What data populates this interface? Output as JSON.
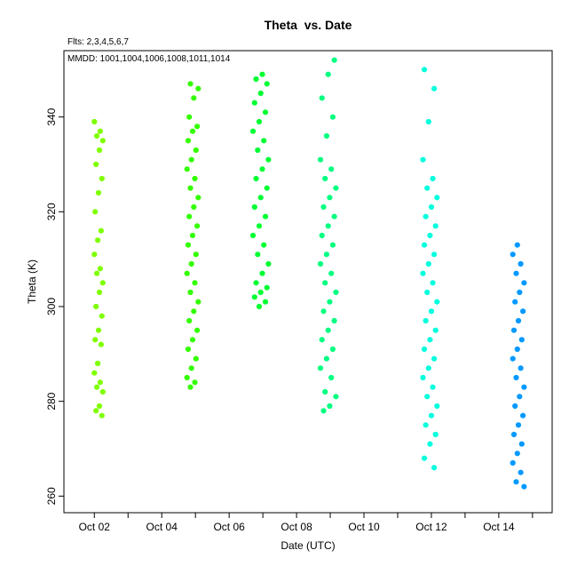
{
  "chart_data": {
    "type": "scatter",
    "title": "Theta  vs. Date",
    "subtitle": "Flts: 2,3,4,5,6,7",
    "annotation": "MMDD: 1001,1004,1006,1008,1011,1014",
    "xlabel": "Date (UTC)",
    "ylabel": "Theta (K)",
    "xlim": [
      "2023-10-01T02:20",
      "2023-10-15T14:00"
    ],
    "ylim": [
      256.5,
      354.0
    ],
    "x_ticks": [
      {
        "date": "2023-10-02",
        "label": "Oct 02"
      },
      {
        "date": "2023-10-04",
        "label": "Oct 04"
      },
      {
        "date": "2023-10-06",
        "label": "Oct 06"
      },
      {
        "date": "2023-10-08",
        "label": "Oct 08"
      },
      {
        "date": "2023-10-10",
        "label": "Oct 10"
      },
      {
        "date": "2023-10-12",
        "label": "Oct 12"
      },
      {
        "date": "2023-10-14",
        "label": "Oct 14"
      }
    ],
    "x_minor_ticks": [
      "2023-10-03",
      "2023-10-05",
      "2023-10-07",
      "2023-10-09",
      "2023-10-11",
      "2023-10-13",
      "2023-10-15"
    ],
    "y_ticks": [
      260,
      280,
      300,
      320,
      340
    ],
    "grid": false,
    "series": [
      {
        "color": "#7fff00",
        "dates": [
          "2023-10-02T00:00",
          "2023-10-02T06:00"
        ],
        "values": [
          339,
          337,
          336,
          335,
          333,
          330,
          327,
          324,
          320,
          316,
          314,
          311,
          308,
          307,
          305,
          303,
          300,
          298,
          295,
          293,
          292,
          288,
          286,
          284,
          283,
          282,
          279,
          278,
          277
        ]
      },
      {
        "color": "#33ff00",
        "dates": [
          "2023-10-04T18:00",
          "2023-10-05T02:00"
        ],
        "values": [
          347,
          346,
          344,
          340,
          338,
          337,
          335,
          333,
          331,
          329,
          327,
          325,
          323,
          321,
          319,
          317,
          315,
          313,
          311,
          309,
          307,
          305,
          303,
          301,
          299,
          297,
          295,
          293,
          291,
          289,
          287,
          285,
          284,
          283
        ]
      },
      {
        "color": "#00ff33",
        "dates": [
          "2023-10-06T17:00",
          "2023-10-07T04:00"
        ],
        "values": [
          349,
          348,
          347,
          345,
          343,
          341,
          339,
          337,
          335,
          333,
          331,
          329,
          327,
          325,
          323,
          321,
          319,
          317,
          315,
          313,
          311,
          309,
          307,
          305,
          304,
          303,
          302,
          301,
          300
        ]
      },
      {
        "color": "#00ff80",
        "dates": [
          "2023-10-08T17:00",
          "2023-10-09T04:00"
        ],
        "values": [
          352,
          349,
          344,
          340,
          336,
          331,
          329,
          327,
          325,
          323,
          321,
          319,
          317,
          315,
          313,
          311,
          309,
          307,
          305,
          303,
          301,
          299,
          297,
          295,
          293,
          291,
          289,
          287,
          285,
          282,
          281,
          279,
          278
        ]
      },
      {
        "color": "#00ffdd",
        "dates": [
          "2023-10-11T18:00",
          "2023-10-12T04:00"
        ],
        "values": [
          350,
          346,
          339,
          331,
          327,
          325,
          323,
          321,
          319,
          317,
          315,
          313,
          311,
          309,
          307,
          305,
          303,
          301,
          299,
          297,
          295,
          293,
          291,
          289,
          287,
          285,
          283,
          281,
          279,
          277,
          275,
          273,
          271,
          268,
          266
        ]
      },
      {
        "color": "#0099ff",
        "dates": [
          "2023-10-14T10:00",
          "2023-10-14T18:00"
        ],
        "values": [
          313,
          311,
          309,
          307,
          305,
          303,
          301,
          299,
          297,
          295,
          293,
          291,
          289,
          287,
          285,
          283,
          281,
          279,
          277,
          275,
          273,
          271,
          269,
          267,
          265,
          263,
          262
        ]
      }
    ]
  }
}
